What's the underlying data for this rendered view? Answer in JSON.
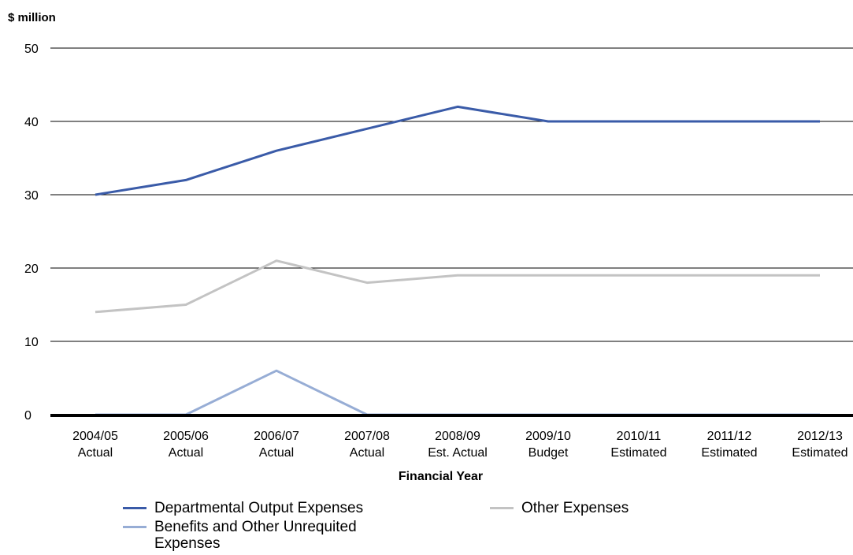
{
  "chart_data": {
    "type": "line",
    "title": "",
    "ylabel": "$ million",
    "xlabel": "Financial Year",
    "ylim": [
      0,
      50
    ],
    "yticks": [
      0,
      10,
      20,
      30,
      40,
      50
    ],
    "grid": true,
    "legend_position": "bottom",
    "categories": [
      [
        "2004/05",
        "Actual"
      ],
      [
        "2005/06",
        "Actual"
      ],
      [
        "2006/07",
        "Actual"
      ],
      [
        "2007/08",
        "Actual"
      ],
      [
        "2008/09",
        "Est. Actual"
      ],
      [
        "2009/10",
        "Budget"
      ],
      [
        "2010/11",
        "Estimated"
      ],
      [
        "2011/12",
        "Estimated"
      ],
      [
        "2012/13",
        "Estimated"
      ]
    ],
    "series": [
      {
        "name": "Departmental Output Expenses",
        "color": "#3a5ba8",
        "values": [
          30,
          32,
          36,
          39,
          42,
          40,
          40,
          40,
          40
        ]
      },
      {
        "name": "Other Expenses",
        "color": "#c3c3c3",
        "values": [
          14,
          15,
          21,
          18,
          19,
          19,
          19,
          19,
          19
        ]
      },
      {
        "name": "Benefits and Other Unrequited Expenses",
        "color": "#97add5",
        "values": [
          0,
          0,
          6,
          0,
          0,
          0,
          0,
          0,
          0
        ]
      }
    ]
  }
}
